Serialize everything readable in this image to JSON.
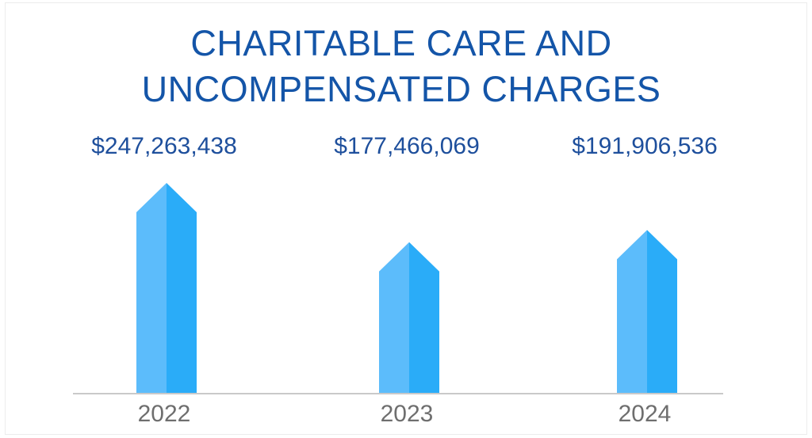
{
  "chart_data": {
    "type": "bar",
    "title": "CHARITABLE CARE AND UNCOMPENSATED CHARGES",
    "title_lines": [
      "CHARITABLE CARE AND",
      "UNCOMPENSATED CHARGES"
    ],
    "categories": [
      "2022",
      "2023",
      "2024"
    ],
    "values": [
      247263438,
      177466069,
      191906536
    ],
    "value_labels": [
      "$247,263,438",
      "$177,466,069",
      "$191,906,536"
    ],
    "xlabel": "",
    "ylabel": "",
    "grid": false,
    "ylim": [
      0,
      260000000
    ]
  },
  "colors": {
    "title": "#1455a8",
    "value_label": "#1e4f9c",
    "category_label": "#6e6e6e",
    "bar_light": "#5cbcfb",
    "bar_dark": "#2aacf8",
    "baseline": "#c9c9c9"
  }
}
